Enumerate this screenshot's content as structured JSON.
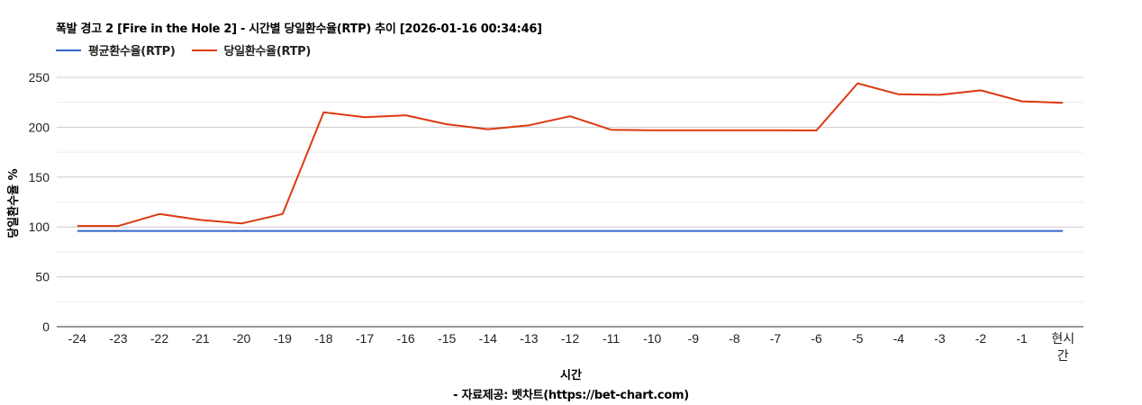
{
  "chart_data": {
    "type": "line",
    "title": "폭발 경고 2 [Fire in the Hole 2] - 시간별 당일환수율(RTP) 추이 [2026-01-16 00:34:46]",
    "xlabel": "시간",
    "ylabel": "당일환수율 %",
    "credit": "- 자료제공: 벳차트(https://bet-chart.com)",
    "categories": [
      "-24",
      "-23",
      "-22",
      "-21",
      "-20",
      "-19",
      "-18",
      "-17",
      "-16",
      "-15",
      "-14",
      "-13",
      "-12",
      "-11",
      "-10",
      "-9",
      "-8",
      "-7",
      "-6",
      "-5",
      "-4",
      "-3",
      "-2",
      "-1",
      "현시간"
    ],
    "series": [
      {
        "name": "평균환수율(RTP)",
        "color": "#3366cc",
        "values": [
          96,
          96,
          96,
          96,
          96,
          96,
          96,
          96,
          96,
          96,
          96,
          96,
          96,
          96,
          96,
          96,
          96,
          96,
          96,
          96,
          96,
          96,
          96,
          96,
          96
        ]
      },
      {
        "name": "당일환수율(RTP)",
        "color": "#dc3912",
        "values": [
          101,
          101,
          113,
          107,
          103.5,
          113,
          215,
          210,
          212,
          203,
          198,
          202,
          211,
          197.5,
          197,
          197,
          197,
          197,
          196.8,
          244,
          233,
          232.5,
          237,
          226,
          224.5
        ]
      }
    ],
    "ylim": [
      0,
      260
    ],
    "yticks": [
      0,
      50,
      100,
      150,
      200,
      250
    ],
    "grid": true,
    "legend_position": "top"
  },
  "legend": {
    "items": [
      {
        "label": "평균환수율(RTP)",
        "color": "#3366cc"
      },
      {
        "label": "당일환수율(RTP)",
        "color": "#dc3912"
      }
    ]
  }
}
